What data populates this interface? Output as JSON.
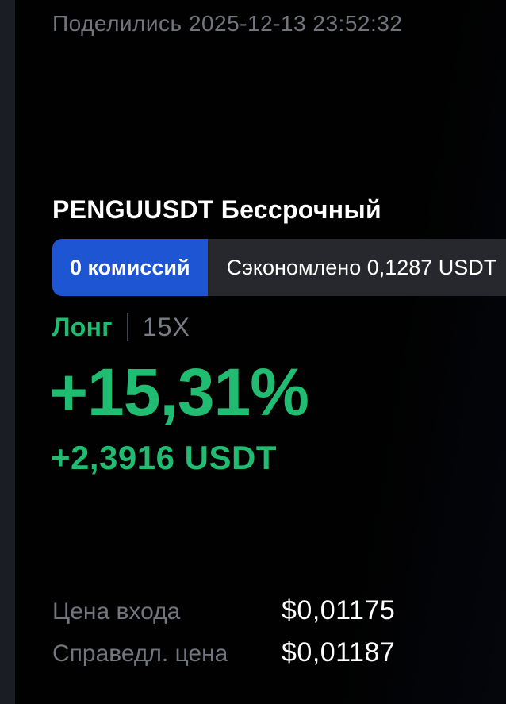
{
  "share": {
    "timestamp_label": "Поделились 2025-12-13 23:52:32"
  },
  "position": {
    "title": "PENGUUSDT Бессрочный",
    "fee_badge_label": "0 комиссий",
    "saved_badge_label": "Сэкономлено 0,1287 USDT",
    "side_label": "Лонг",
    "leverage_label": "15X",
    "pnl_percent": "+15,31%",
    "pnl_amount": "+2,3916 USDT"
  },
  "prices": {
    "rows": [
      {
        "label": "Цена входа",
        "value": "$0,01175"
      },
      {
        "label": "Справедл. цена",
        "value": "$0,01187"
      }
    ]
  },
  "colors": {
    "profit_green": "#1fbc72",
    "fee_badge_blue": "#1e55d2",
    "saved_badge_gray": "#26282d",
    "muted_text_gray": "#71757d",
    "background": "#000000",
    "left_strip": "#1a1d23"
  }
}
